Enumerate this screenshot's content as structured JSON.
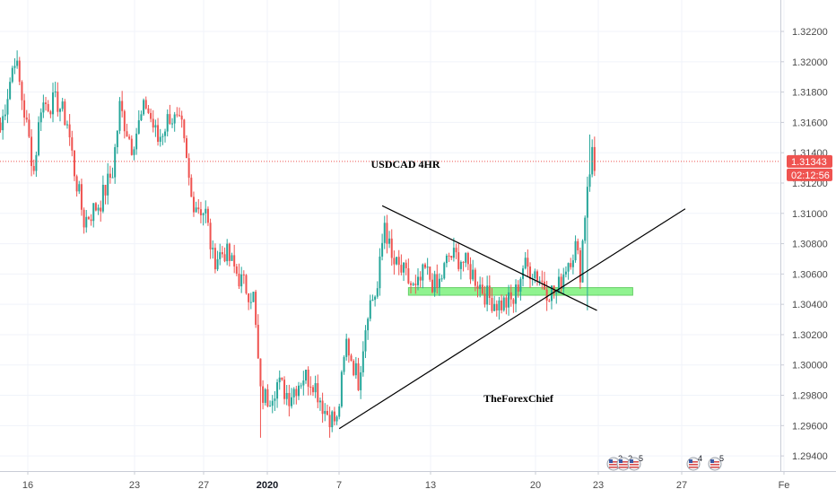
{
  "chart_data": {
    "type": "candlestick",
    "annotations": {
      "title": "USDCAD 4HR",
      "watermark": "TheForexChief"
    },
    "colors": {
      "up": "#26a69a",
      "down": "#ef5350",
      "price_line": "#ef5350",
      "zone_fill": "#7df27d",
      "zone_edge": "#4cc74c",
      "grid": "#f0f3fa",
      "axis_text": "#4a4a4a",
      "trendline": "#000000"
    },
    "y_axis": {
      "min": 1.293,
      "max": 1.3236,
      "ticks": [
        "1.29400",
        "1.29600",
        "1.29800",
        "1.30000",
        "1.30200",
        "1.30400",
        "1.30600",
        "1.30800",
        "1.31000",
        "1.31200",
        "1.31400",
        "1.31600",
        "1.31800",
        "1.32000",
        "1.32200"
      ]
    },
    "x_axis": {
      "ticks": [
        {
          "label": "16",
          "bold": false
        },
        {
          "label": "23",
          "bold": false
        },
        {
          "label": "27",
          "bold": false
        },
        {
          "label": "2020",
          "bold": true
        },
        {
          "label": "7",
          "bold": false
        },
        {
          "label": "13",
          "bold": false
        },
        {
          "label": "20",
          "bold": false
        },
        {
          "label": "23",
          "bold": false
        },
        {
          "label": "27",
          "bold": false
        },
        {
          "label": "Fe",
          "bold": false
        }
      ]
    },
    "current_price": {
      "value": 1.31343,
      "label": "1.31343",
      "countdown": "02:12:56"
    },
    "support_zone": {
      "low": 1.3046,
      "high": 1.3051
    },
    "trendlines": [
      {
        "name": "rising-support",
        "from": {
          "bar": 142,
          "price": 1.2958
        },
        "to": {
          "bar": 287,
          "price": 1.3103
        }
      },
      {
        "name": "falling-resistance",
        "from": {
          "bar": 160,
          "price": 1.3105
        },
        "to": {
          "bar": 250,
          "price": 1.3036
        }
      }
    ],
    "event_markers": [
      {
        "label": "2"
      },
      {
        "label": "2"
      },
      {
        "label": "5"
      },
      {
        "label": "4"
      },
      {
        "label": "5"
      }
    ],
    "anchors": [
      {
        "bar": 0,
        "price": 1.3155
      },
      {
        "bar": 6,
        "price": 1.3204
      },
      {
        "bar": 12,
        "price": 1.3148
      },
      {
        "bar": 14,
        "price": 1.3128
      },
      {
        "bar": 17,
        "price": 1.3172
      },
      {
        "bar": 24,
        "price": 1.3173
      },
      {
        "bar": 28,
        "price": 1.316
      },
      {
        "bar": 31,
        "price": 1.3128
      },
      {
        "bar": 35,
        "price": 1.3095
      },
      {
        "bar": 42,
        "price": 1.3108
      },
      {
        "bar": 47,
        "price": 1.3128
      },
      {
        "bar": 50,
        "price": 1.317
      },
      {
        "bar": 55,
        "price": 1.3145
      },
      {
        "bar": 61,
        "price": 1.3172
      },
      {
        "bar": 66,
        "price": 1.3148
      },
      {
        "bar": 71,
        "price": 1.3165
      },
      {
        "bar": 76,
        "price": 1.3155
      },
      {
        "bar": 80,
        "price": 1.311
      },
      {
        "bar": 86,
        "price": 1.31
      },
      {
        "bar": 89,
        "price": 1.307
      },
      {
        "bar": 94,
        "price": 1.3075
      },
      {
        "bar": 101,
        "price": 1.3055
      },
      {
        "bar": 106,
        "price": 1.3045
      },
      {
        "bar": 109,
        "price": 1.298
      },
      {
        "bar": 112,
        "price": 1.2978
      },
      {
        "bar": 116,
        "price": 1.2988
      },
      {
        "bar": 121,
        "price": 1.298
      },
      {
        "bar": 127,
        "price": 1.2993
      },
      {
        "bar": 131,
        "price": 1.299
      },
      {
        "bar": 136,
        "price": 1.297
      },
      {
        "bar": 141,
        "price": 1.2962
      },
      {
        "bar": 145,
        "price": 1.3015
      },
      {
        "bar": 150,
        "price": 1.299
      },
      {
        "bar": 154,
        "price": 1.3038
      },
      {
        "bar": 158,
        "price": 1.305
      },
      {
        "bar": 161,
        "price": 1.3095
      },
      {
        "bar": 164,
        "price": 1.3068
      },
      {
        "bar": 169,
        "price": 1.306
      },
      {
        "bar": 174,
        "price": 1.3048
      },
      {
        "bar": 178,
        "price": 1.3062
      },
      {
        "bar": 183,
        "price": 1.305
      },
      {
        "bar": 188,
        "price": 1.3072
      },
      {
        "bar": 193,
        "price": 1.307
      },
      {
        "bar": 198,
        "price": 1.306
      },
      {
        "bar": 204,
        "price": 1.3045
      },
      {
        "bar": 209,
        "price": 1.304
      },
      {
        "bar": 215,
        "price": 1.3042
      },
      {
        "bar": 219,
        "price": 1.3065
      },
      {
        "bar": 224,
        "price": 1.3062
      },
      {
        "bar": 229,
        "price": 1.305
      },
      {
        "bar": 233,
        "price": 1.3047
      },
      {
        "bar": 237,
        "price": 1.3066
      },
      {
        "bar": 241,
        "price": 1.3078
      },
      {
        "bar": 243,
        "price": 1.3062
      },
      {
        "bar": 246,
        "price": 1.312
      },
      {
        "bar": 248,
        "price": 1.314
      },
      {
        "bar": 249,
        "price": 1.3128
      }
    ]
  }
}
